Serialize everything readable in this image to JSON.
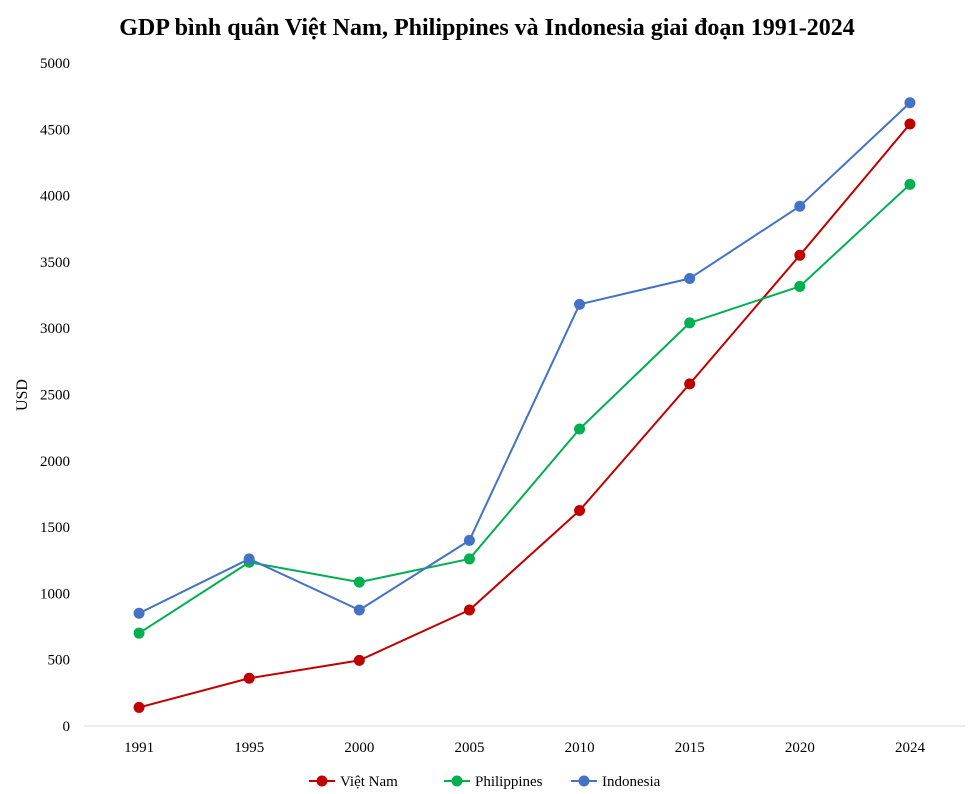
{
  "chart_data": {
    "type": "line",
    "title": "GDP bình quân Việt Nam, Philippines và Indonesia giai đoạn 1991-2024",
    "xlabel": "",
    "ylabel": "USD",
    "categories": [
      "1991",
      "1995",
      "2000",
      "2005",
      "2010",
      "2015",
      "2020",
      "2024"
    ],
    "ylim": [
      0,
      5000
    ],
    "yticks": [
      "0",
      "500",
      "1000",
      "1500",
      "2000",
      "2500",
      "3000",
      "3500",
      "4000",
      "4500",
      "5000"
    ],
    "grid": false,
    "legend_position": "bottom",
    "series": [
      {
        "name": "Việt Nam",
        "color": "#c00000",
        "values": [
          140,
          360,
          495,
          875,
          1625,
          2580,
          3550,
          4540
        ]
      },
      {
        "name": "Philippines",
        "color": "#00b050",
        "values": [
          700,
          1235,
          1085,
          1260,
          2240,
          3040,
          3315,
          4085
        ]
      },
      {
        "name": "Indonesia",
        "color": "#4472c4",
        "values": [
          850,
          1260,
          875,
          1400,
          3180,
          3375,
          3920,
          4700
        ]
      }
    ]
  }
}
